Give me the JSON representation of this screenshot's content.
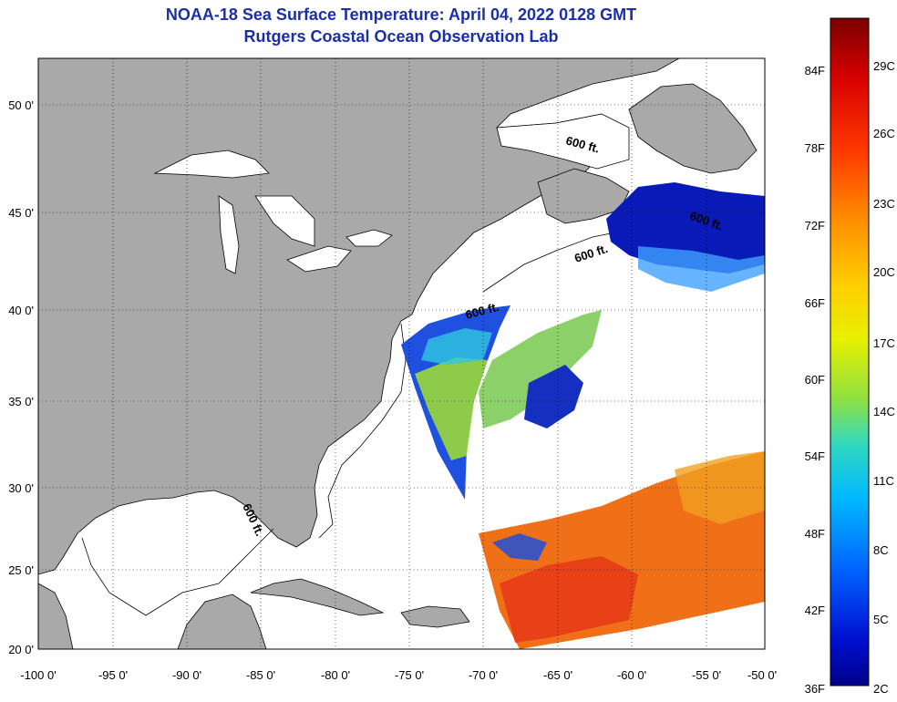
{
  "title": "NOAA-18 Sea Surface Temperature:  April 04, 2022 0128 GMT",
  "subtitle": "Rutgers Coastal Ocean Observation Lab",
  "map": {
    "lon_labels": [
      "-100 0'",
      "-95 0'",
      "-90 0'",
      "-85 0'",
      "-80 0'",
      "-75 0'",
      "-70 0'",
      "-65 0'",
      "-60 0'",
      "-55 0'",
      "-50 0'"
    ],
    "lat_labels": [
      "50 0'",
      "45 0'",
      "40 0'",
      "35 0'",
      "30 0'",
      "25 0'",
      "20 0'"
    ],
    "contour_labels": [
      "600 ft.",
      "600 ft.",
      "600 ft.",
      "600 ft.",
      "600 ft."
    ]
  },
  "colorbar": {
    "fahrenheit_labels": [
      "84F",
      "78F",
      "72F",
      "66F",
      "60F",
      "54F",
      "48F",
      "42F",
      "36F"
    ],
    "celsius_labels": [
      "29C",
      "26C",
      "23C",
      "20C",
      "17C",
      "14C",
      "11C",
      "8C",
      "5C",
      "2C"
    ],
    "colors": [
      "#7a0000",
      "#d80000",
      "#ff4000",
      "#ff8c00",
      "#ffd000",
      "#e8f000",
      "#90e040",
      "#30d8c0",
      "#00b8ff",
      "#0060ff",
      "#0010d0",
      "#00008a"
    ]
  },
  "colors": {
    "land": "#a9a9a9",
    "water": "#ffffff",
    "title": "#1c2fa6"
  }
}
